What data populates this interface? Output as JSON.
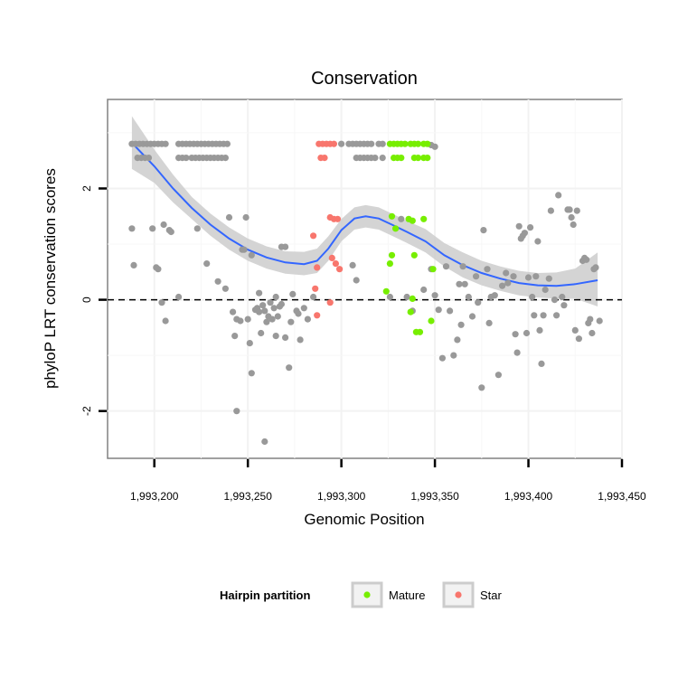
{
  "chart_data": {
    "type": "scatter",
    "title": "Conservation",
    "xlabel": "Genomic Position",
    "ylabel": "phyloP LRT conservation scores",
    "xlim": [
      1993175,
      1993450
    ],
    "ylim": [
      -2.85,
      3.6
    ],
    "x_ticks": [
      1993200,
      1993250,
      1993300,
      1993350,
      1993400,
      1993450
    ],
    "x_tick_labels": [
      "1,993,200",
      "1,993,250",
      "1,993,300",
      "1,993,350",
      "1,993,400",
      "1,993,450"
    ],
    "y_ticks": [
      -2,
      0,
      2
    ],
    "y_tick_labels": [
      "-2",
      "0",
      "2"
    ],
    "reference_line": {
      "y": 0,
      "style": "dashed"
    },
    "legend": {
      "title": "Hairpin partition",
      "position": "bottom",
      "entries": [
        {
          "label": "Mature",
          "color": "#77ee00"
        },
        {
          "label": "Star",
          "color": "#f8766d"
        }
      ]
    },
    "colors": {
      "other": "#999999",
      "Mature": "#77ee00",
      "Star": "#f8766d",
      "smooth": "#3366ff",
      "ribbon": "#cccccc"
    },
    "series": [
      {
        "name": "other",
        "points": [
          [
            1993188,
            2.8
          ],
          [
            1993190,
            2.8
          ],
          [
            1993192,
            2.8
          ],
          [
            1993194,
            2.8
          ],
          [
            1993196,
            2.8
          ],
          [
            1993198,
            2.8
          ],
          [
            1993200,
            2.8
          ],
          [
            1993202,
            2.8
          ],
          [
            1993204,
            2.8
          ],
          [
            1993206,
            2.8
          ],
          [
            1993191,
            2.55
          ],
          [
            1993193,
            2.55
          ],
          [
            1993195,
            2.55
          ],
          [
            1993197,
            2.55
          ],
          [
            1993213,
            2.8
          ],
          [
            1993215,
            2.8
          ],
          [
            1993217,
            2.8
          ],
          [
            1993219,
            2.8
          ],
          [
            1993221,
            2.8
          ],
          [
            1993223,
            2.8
          ],
          [
            1993225,
            2.8
          ],
          [
            1993227,
            2.8
          ],
          [
            1993229,
            2.8
          ],
          [
            1993231,
            2.8
          ],
          [
            1993233,
            2.8
          ],
          [
            1993235,
            2.8
          ],
          [
            1993237,
            2.8
          ],
          [
            1993239,
            2.8
          ],
          [
            1993213,
            2.55
          ],
          [
            1993215,
            2.55
          ],
          [
            1993217,
            2.55
          ],
          [
            1993220,
            2.55
          ],
          [
            1993222,
            2.55
          ],
          [
            1993224,
            2.55
          ],
          [
            1993226,
            2.55
          ],
          [
            1993228,
            2.55
          ],
          [
            1993230,
            2.55
          ],
          [
            1993232,
            2.55
          ],
          [
            1993234,
            2.55
          ],
          [
            1993236,
            2.55
          ],
          [
            1993238,
            2.55
          ],
          [
            1993300,
            2.8
          ],
          [
            1993304,
            2.8
          ],
          [
            1993306,
            2.8
          ],
          [
            1993308,
            2.8
          ],
          [
            1993310,
            2.8
          ],
          [
            1993312,
            2.8
          ],
          [
            1993314,
            2.8
          ],
          [
            1993316,
            2.8
          ],
          [
            1993320,
            2.8
          ],
          [
            1993322,
            2.8
          ],
          [
            1993348,
            2.78
          ],
          [
            1993350,
            2.75
          ],
          [
            1993308,
            2.55
          ],
          [
            1993310,
            2.55
          ],
          [
            1993312,
            2.55
          ],
          [
            1993314,
            2.55
          ],
          [
            1993316,
            2.55
          ],
          [
            1993318,
            2.55
          ],
          [
            1993322,
            2.55
          ],
          [
            1993188,
            1.28
          ],
          [
            1993189,
            0.62
          ],
          [
            1993199,
            1.28
          ],
          [
            1993201,
            0.58
          ],
          [
            1993202,
            0.55
          ],
          [
            1993204,
            -0.05
          ],
          [
            1993205,
            1.35
          ],
          [
            1993206,
            -0.38
          ],
          [
            1993208,
            1.25
          ],
          [
            1993209,
            1.22
          ],
          [
            1993213,
            0.05
          ],
          [
            1993223,
            1.28
          ],
          [
            1993228,
            0.65
          ],
          [
            1993234,
            0.33
          ],
          [
            1993238,
            0.2
          ],
          [
            1993240,
            1.48
          ],
          [
            1993242,
            -0.22
          ],
          [
            1993243,
            -0.65
          ],
          [
            1993244,
            -0.35
          ],
          [
            1993244,
            -2.0
          ],
          [
            1993246,
            -0.38
          ],
          [
            1993247,
            0.9
          ],
          [
            1993248,
            0.9
          ],
          [
            1993249,
            1.48
          ],
          [
            1993250,
            -0.35
          ],
          [
            1993251,
            -0.78
          ],
          [
            1993252,
            0.8
          ],
          [
            1993252,
            -1.32
          ],
          [
            1993254,
            -0.18
          ],
          [
            1993255,
            -0.15
          ],
          [
            1993256,
            0.12
          ],
          [
            1993256,
            -0.22
          ],
          [
            1993257,
            -0.6
          ],
          [
            1993258,
            -0.1
          ],
          [
            1993259,
            -0.2
          ],
          [
            1993259,
            -2.55
          ],
          [
            1993260,
            -0.4
          ],
          [
            1993261,
            -0.3
          ],
          [
            1993262,
            -0.05
          ],
          [
            1993263,
            -0.35
          ],
          [
            1993264,
            -0.15
          ],
          [
            1993265,
            0.05
          ],
          [
            1993265,
            -0.65
          ],
          [
            1993266,
            -0.3
          ],
          [
            1993267,
            -0.12
          ],
          [
            1993268,
            0.95
          ],
          [
            1993268,
            -0.08
          ],
          [
            1993270,
            0.95
          ],
          [
            1993270,
            -0.68
          ],
          [
            1993272,
            -1.22
          ],
          [
            1993273,
            -0.4
          ],
          [
            1993274,
            0.1
          ],
          [
            1993276,
            -0.2
          ],
          [
            1993277,
            -0.25
          ],
          [
            1993278,
            -0.72
          ],
          [
            1993280,
            -0.15
          ],
          [
            1993282,
            -0.35
          ],
          [
            1993285,
            0.05
          ],
          [
            1993306,
            0.62
          ],
          [
            1993308,
            0.35
          ],
          [
            1993326,
            0.05
          ],
          [
            1993332,
            1.45
          ],
          [
            1993335,
            0.05
          ],
          [
            1993338,
            -0.2
          ],
          [
            1993344,
            0.18
          ],
          [
            1993348,
            0.55
          ],
          [
            1993350,
            0.08
          ],
          [
            1993352,
            -0.18
          ],
          [
            1993354,
            -1.05
          ],
          [
            1993356,
            0.6
          ],
          [
            1993358,
            -0.2
          ],
          [
            1993360,
            -1.0
          ],
          [
            1993362,
            -0.72
          ],
          [
            1993363,
            0.28
          ],
          [
            1993364,
            -0.45
          ],
          [
            1993365,
            0.6
          ],
          [
            1993366,
            0.28
          ],
          [
            1993368,
            0.05
          ],
          [
            1993370,
            -0.3
          ],
          [
            1993372,
            0.42
          ],
          [
            1993373,
            -0.05
          ],
          [
            1993375,
            -1.58
          ],
          [
            1993376,
            1.25
          ],
          [
            1993378,
            0.55
          ],
          [
            1993379,
            -0.42
          ],
          [
            1993380,
            0.05
          ],
          [
            1993382,
            0.08
          ],
          [
            1993384,
            -1.35
          ],
          [
            1993386,
            0.25
          ],
          [
            1993388,
            0.48
          ],
          [
            1993389,
            0.3
          ],
          [
            1993392,
            0.42
          ],
          [
            1993393,
            -0.62
          ],
          [
            1993394,
            -0.95
          ],
          [
            1993395,
            1.32
          ],
          [
            1993396,
            1.1
          ],
          [
            1993397,
            1.15
          ],
          [
            1993398,
            1.2
          ],
          [
            1993399,
            -0.6
          ],
          [
            1993400,
            0.4
          ],
          [
            1993401,
            1.3
          ],
          [
            1993402,
            0.05
          ],
          [
            1993403,
            -0.28
          ],
          [
            1993404,
            0.42
          ],
          [
            1993405,
            1.05
          ],
          [
            1993406,
            -0.55
          ],
          [
            1993407,
            -1.15
          ],
          [
            1993408,
            -0.28
          ],
          [
            1993409,
            0.18
          ],
          [
            1993411,
            0.38
          ],
          [
            1993412,
            1.6
          ],
          [
            1993414,
            0.0
          ],
          [
            1993415,
            -0.28
          ],
          [
            1993416,
            1.88
          ],
          [
            1993418,
            0.05
          ],
          [
            1993419,
            -0.1
          ],
          [
            1993421,
            1.62
          ],
          [
            1993422,
            1.62
          ],
          [
            1993423,
            1.48
          ],
          [
            1993424,
            1.35
          ],
          [
            1993425,
            -0.55
          ],
          [
            1993426,
            1.6
          ],
          [
            1993427,
            -0.7
          ],
          [
            1993429,
            0.7
          ],
          [
            1993430,
            0.75
          ],
          [
            1993431,
            0.72
          ],
          [
            1993432,
            -0.42
          ],
          [
            1993433,
            -0.35
          ],
          [
            1993434,
            -0.6
          ],
          [
            1993435,
            0.55
          ],
          [
            1993436,
            0.58
          ],
          [
            1993438,
            -0.38
          ]
        ]
      },
      {
        "name": "Mature",
        "points": [
          [
            1993326,
            2.8
          ],
          [
            1993328,
            2.8
          ],
          [
            1993330,
            2.8
          ],
          [
            1993332,
            2.8
          ],
          [
            1993334,
            2.8
          ],
          [
            1993337,
            2.8
          ],
          [
            1993339,
            2.8
          ],
          [
            1993341,
            2.8
          ],
          [
            1993344,
            2.8
          ],
          [
            1993346,
            2.8
          ],
          [
            1993328,
            2.55
          ],
          [
            1993330,
            2.55
          ],
          [
            1993332,
            2.55
          ],
          [
            1993339,
            2.55
          ],
          [
            1993341,
            2.55
          ],
          [
            1993344,
            2.55
          ],
          [
            1993346,
            2.55
          ],
          [
            1993327,
            1.5
          ],
          [
            1993329,
            1.28
          ],
          [
            1993336,
            1.45
          ],
          [
            1993338,
            1.42
          ],
          [
            1993344,
            1.45
          ],
          [
            1993327,
            0.8
          ],
          [
            1993326,
            0.65
          ],
          [
            1993339,
            0.8
          ],
          [
            1993324,
            0.15
          ],
          [
            1993338,
            0.02
          ],
          [
            1993337,
            -0.22
          ],
          [
            1993340,
            -0.58
          ],
          [
            1993342,
            -0.58
          ],
          [
            1993348,
            -0.38
          ],
          [
            1993349,
            0.55
          ]
        ]
      },
      {
        "name": "Star",
        "points": [
          [
            1993288,
            2.8
          ],
          [
            1993290,
            2.8
          ],
          [
            1993292,
            2.8
          ],
          [
            1993294,
            2.8
          ],
          [
            1993296,
            2.8
          ],
          [
            1993289,
            2.55
          ],
          [
            1993291,
            2.55
          ],
          [
            1993294,
            1.48
          ],
          [
            1993296,
            1.45
          ],
          [
            1993298,
            1.45
          ],
          [
            1993285,
            1.15
          ],
          [
            1993295,
            0.75
          ],
          [
            1993297,
            0.65
          ],
          [
            1993299,
            0.55
          ],
          [
            1993287,
            0.58
          ],
          [
            1993286,
            0.2
          ],
          [
            1993294,
            -0.05
          ],
          [
            1993287,
            -0.28
          ]
        ]
      }
    ],
    "smooth_fit": {
      "x": [
        1993188,
        1993200,
        1993210,
        1993220,
        1993230,
        1993240,
        1993250,
        1993260,
        1993270,
        1993280,
        1993287,
        1993293,
        1993300,
        1993307,
        1993313,
        1993320,
        1993327,
        1993335,
        1993345,
        1993355,
        1993365,
        1993375,
        1993385,
        1993395,
        1993405,
        1993415,
        1993425,
        1993437
      ],
      "y": [
        2.82,
        2.4,
        2.0,
        1.65,
        1.35,
        1.1,
        0.9,
        0.76,
        0.67,
        0.64,
        0.7,
        0.92,
        1.25,
        1.46,
        1.5,
        1.46,
        1.35,
        1.22,
        1.05,
        0.8,
        0.62,
        0.48,
        0.38,
        0.3,
        0.26,
        0.25,
        0.28,
        0.35
      ],
      "upper": [
        3.3,
        2.7,
        2.25,
        1.85,
        1.55,
        1.3,
        1.1,
        0.96,
        0.87,
        0.86,
        0.92,
        1.14,
        1.45,
        1.66,
        1.7,
        1.66,
        1.55,
        1.42,
        1.27,
        1.02,
        0.85,
        0.7,
        0.6,
        0.52,
        0.48,
        0.49,
        0.56,
        0.85
      ],
      "lower": [
        2.35,
        2.1,
        1.75,
        1.45,
        1.15,
        0.9,
        0.7,
        0.56,
        0.47,
        0.44,
        0.48,
        0.7,
        1.05,
        1.26,
        1.3,
        1.26,
        1.15,
        1.02,
        0.85,
        0.6,
        0.4,
        0.26,
        0.16,
        0.08,
        0.04,
        0.02,
        0.02,
        -0.12
      ]
    }
  }
}
